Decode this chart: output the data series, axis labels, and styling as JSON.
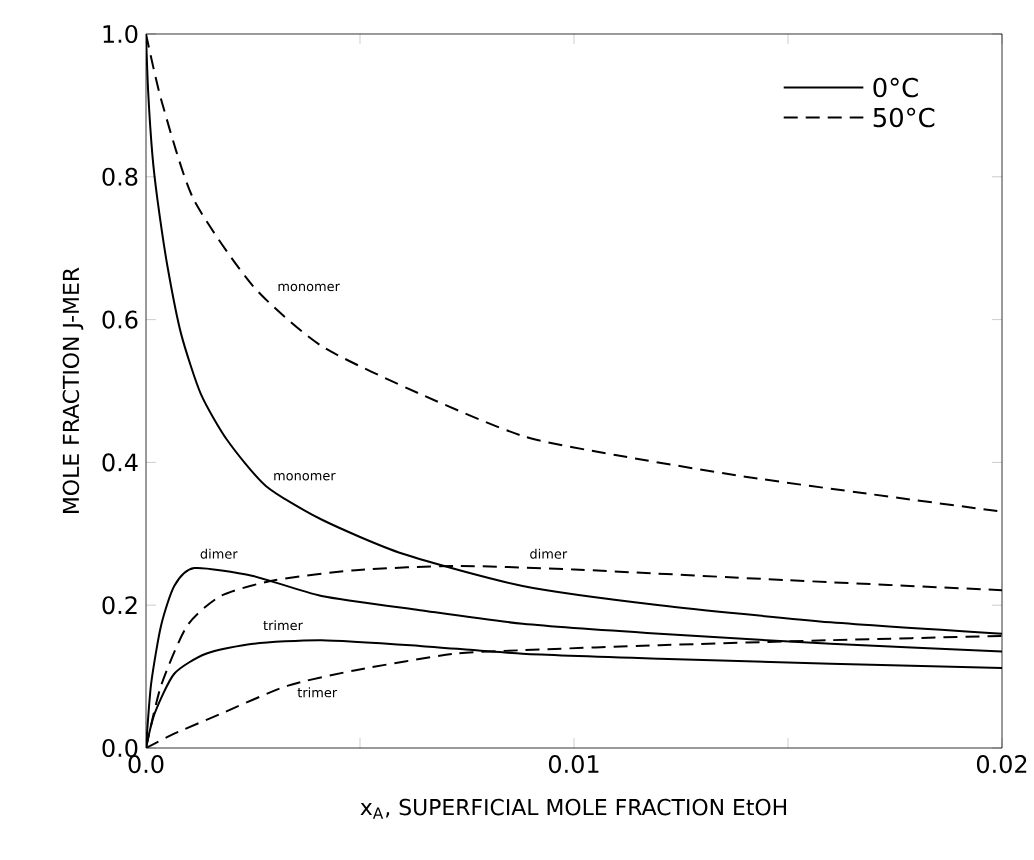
{
  "chart_data": {
    "type": "line",
    "xlabel": "x$_{A}$, SUPERFICIAL MOLE FRACTION EtOH",
    "ylabel": "MOLE FRACTION J-MER",
    "xlim": [
      0,
      0.02
    ],
    "ylim": [
      0,
      1.0
    ],
    "xticks": [
      {
        "value": 0,
        "label": "0.0"
      },
      {
        "value": 0.005,
        "label": null
      },
      0.01,
      {
        "value": 0.015,
        "label": null
      },
      0.02
    ],
    "yticks": [
      {
        "value": 0,
        "label": "0.0"
      },
      0.2,
      0.4,
      0.6,
      0.8,
      {
        "value": 1.0,
        "label": "1.0"
      }
    ],
    "grid": false,
    "legend": "top right",
    "marker": "none",
    "series": [
      {
        "name": "0°C",
        "color": "#000000",
        "line_style": "solid",
        "x": [
          0,
          5e-05,
          0.00015,
          0.00027,
          0.0005,
          0.00082,
          0.00128,
          0.0019,
          0.0028,
          0.0041,
          0.006,
          0.0088,
          0.012,
          0.016,
          0.02
        ],
        "values": [
          1.0,
          0.92,
          0.83,
          0.767,
          0.675,
          0.58,
          0.496,
          0.431,
          0.367,
          0.32,
          0.272,
          0.227,
          0.2,
          0.176,
          0.16
        ]
      },
      {
        "color": "#000000",
        "line_style": "solid",
        "x": [
          0,
          0.00012,
          0.00035,
          0.00066,
          0.00113,
          0.0025,
          0.0041,
          0.0064,
          0.0088,
          0.012,
          0.016,
          0.02
        ],
        "values": [
          0,
          0.09,
          0.171,
          0.227,
          0.252,
          0.241,
          0.213,
          0.193,
          0.174,
          0.16,
          0.146,
          0.135
        ]
      },
      {
        "color": "#000000",
        "line_style": "solid",
        "x": [
          0,
          0.0002,
          0.00066,
          0.0014,
          0.0025,
          0.0041,
          0.0064,
          0.0088,
          0.012,
          0.016,
          0.02
        ],
        "values": [
          0,
          0.048,
          0.104,
          0.132,
          0.146,
          0.151,
          0.143,
          0.132,
          0.125,
          0.118,
          0.112
        ]
      },
      {
        "name": "50°C",
        "color": "#000000",
        "line_style": "dashed",
        "x": [
          0,
          0.00036,
          0.0011,
          0.0025,
          0.0041,
          0.0064,
          0.0088,
          0.011,
          0.014,
          0.017,
          0.02
        ],
        "values": [
          1.0,
          0.907,
          0.77,
          0.647,
          0.563,
          0.496,
          0.437,
          0.41,
          0.38,
          0.355,
          0.331
        ]
      },
      {
        "color": "#000000",
        "line_style": "dashed",
        "x": [
          0,
          0.00035,
          0.00096,
          0.00175,
          0.003,
          0.0049,
          0.0072,
          0.01,
          0.015,
          0.02
        ],
        "values": [
          0,
          0.087,
          0.171,
          0.213,
          0.235,
          0.249,
          0.255,
          0.25,
          0.235,
          0.221
        ]
      },
      {
        "color": "#000000",
        "line_style": "dashed",
        "x": [
          0,
          0.00066,
          0.00175,
          0.0033,
          0.0049,
          0.0072,
          0.0088,
          0.012,
          0.016,
          0.02
        ],
        "values": [
          0,
          0.02,
          0.048,
          0.087,
          0.109,
          0.132,
          0.137,
          0.144,
          0.151,
          0.157
        ]
      }
    ],
    "annotations": [
      "monomer",
      "monomer",
      "dimer",
      "dimer",
      "trimer",
      "trimer"
    ]
  }
}
